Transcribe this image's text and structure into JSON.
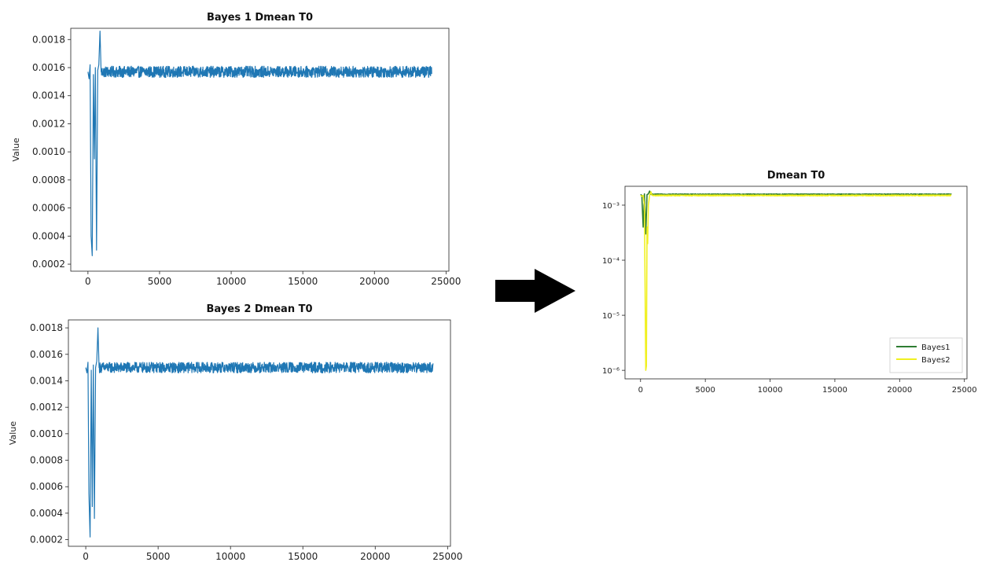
{
  "colors": {
    "blue": "#1f77b4",
    "green": "#2e7d32",
    "yellow": "#f0f020",
    "arrow": "#000000"
  },
  "arrow_icon": "right-arrow-icon",
  "chart_data": [
    {
      "type": "line",
      "title": "Bayes 1 Dmean T0",
      "xlabel": "",
      "ylabel": "Value",
      "xlim": [
        -1200,
        25200
      ],
      "ylim": [
        0.00015,
        0.00188
      ],
      "xticks": [
        0,
        5000,
        10000,
        15000,
        20000,
        25000
      ],
      "xtick_labels": [
        "0",
        "5000",
        "10000",
        "15000",
        "20000",
        "25000"
      ],
      "yticks": [
        0.0002,
        0.0004,
        0.0006,
        0.0008,
        0.001,
        0.0012,
        0.0014,
        0.0016,
        0.0018
      ],
      "ytick_labels": [
        "0.0002",
        "0.0004",
        "0.0006",
        "0.0008",
        "0.0010",
        "0.0012",
        "0.0014",
        "0.0016",
        "0.0018"
      ],
      "grid": false,
      "series": [
        {
          "color": "#1f77b4",
          "x_start": 0,
          "x_end": 24000,
          "steady_mean": 0.00157,
          "steady_amplitude": 4e-05,
          "early_x": [
            0,
            80,
            150,
            220,
            300,
            380,
            450,
            520,
            600,
            680,
            760,
            840,
            920
          ],
          "early_y": [
            0.00157,
            0.00152,
            0.00162,
            0.0004,
            0.00026,
            0.00155,
            0.00095,
            0.0016,
            0.0003,
            0.00158,
            0.00162,
            0.00186,
            0.00157
          ]
        }
      ]
    },
    {
      "type": "line",
      "title": "Bayes 2 Dmean T0",
      "xlabel": "",
      "ylabel": "Value",
      "xlim": [
        -1200,
        25200
      ],
      "ylim": [
        0.00015,
        0.00186
      ],
      "xticks": [
        0,
        5000,
        10000,
        15000,
        20000,
        25000
      ],
      "xtick_labels": [
        "0",
        "5000",
        "10000",
        "15000",
        "20000",
        "25000"
      ],
      "yticks": [
        0.0002,
        0.0004,
        0.0006,
        0.0008,
        0.001,
        0.0012,
        0.0014,
        0.0016,
        0.0018
      ],
      "ytick_labels": [
        "0.0002",
        "0.0004",
        "0.0006",
        "0.0008",
        "0.0010",
        "0.0012",
        "0.0014",
        "0.0016",
        "0.0018"
      ],
      "grid": false,
      "series": [
        {
          "color": "#1f77b4",
          "x_start": 0,
          "x_end": 24000,
          "steady_mean": 0.0015,
          "steady_amplitude": 4e-05,
          "early_x": [
            0,
            80,
            150,
            220,
            300,
            380,
            450,
            520,
            600,
            680,
            760,
            840,
            920
          ],
          "early_y": [
            0.0015,
            0.00146,
            0.00154,
            0.00055,
            0.00022,
            0.00148,
            0.00045,
            0.00152,
            0.00036,
            0.0015,
            0.00155,
            0.0018,
            0.0015
          ]
        }
      ]
    },
    {
      "type": "line",
      "title": "Dmean T0",
      "xlabel": "",
      "ylabel": "",
      "yscale": "log",
      "xlim": [
        -1200,
        25200
      ],
      "ylim": [
        7e-07,
        0.0022
      ],
      "xticks": [
        0,
        5000,
        10000,
        15000,
        20000,
        25000
      ],
      "xtick_labels": [
        "0",
        "5000",
        "10000",
        "15000",
        "20000",
        "25000"
      ],
      "yticks": [
        0.001,
        0.0001,
        1e-05,
        1e-06
      ],
      "ytick_labels": [
        "10⁻³",
        "10⁻⁴",
        "10⁻⁵",
        "10⁻⁶"
      ],
      "grid": false,
      "legend": "lower-right",
      "series": [
        {
          "name": "Bayes1",
          "color": "#2e7d32",
          "x_start": 0,
          "x_end": 24000,
          "steady_mean": 0.00157,
          "steady_amplitude": 3e-05,
          "early_x": [
            0,
            100,
            200,
            300,
            400,
            500,
            600,
            700,
            800
          ],
          "early_y": [
            0.00157,
            0.0015,
            0.0004,
            0.0016,
            0.0003,
            0.00155,
            0.0016,
            0.0018,
            0.00157
          ]
        },
        {
          "name": "Bayes2",
          "color": "#f0f020",
          "x_start": 0,
          "x_end": 24000,
          "steady_mean": 0.0015,
          "steady_amplitude": 3e-05,
          "early_x": [
            0,
            100,
            200,
            300,
            400,
            450,
            500,
            550,
            600,
            700,
            800,
            900
          ],
          "early_y": [
            0.0015,
            0.00145,
            0.0015,
            0.001,
            1e-06,
            1.2e-06,
            0.0004,
            0.0002,
            0.001,
            0.0015,
            0.00175,
            0.0015
          ]
        }
      ]
    }
  ]
}
